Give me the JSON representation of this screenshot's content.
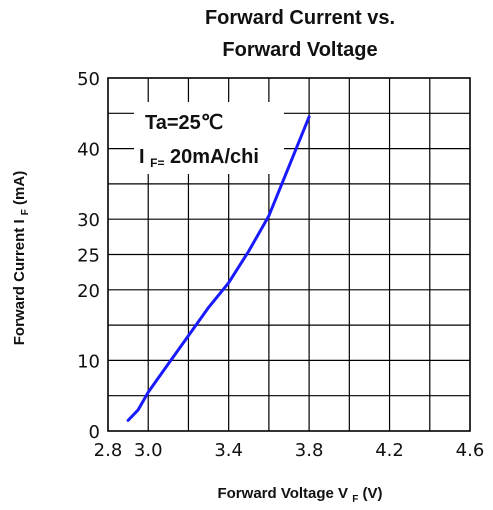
{
  "chart_data": {
    "type": "line",
    "title_line1": "Forward Current vs.",
    "title_line2": "Forward Voltage",
    "xlabel_main": "Forward Voltage V",
    "xlabel_sub": "F",
    "xlabel_unit": "(V)",
    "ylabel_main": "Forward Current I",
    "ylabel_sub": "F",
    "ylabel_unit": "(mA)",
    "annotation_line1": "Ta=25℃",
    "annotation_line2_main": "I",
    "annotation_line2_sub": "F=",
    "annotation_line2_rest": "20mA/chi",
    "xlim": [
      2.8,
      4.6
    ],
    "ylim": [
      0,
      50
    ],
    "x_ticks": [
      2.8,
      3.0,
      3.4,
      3.8,
      4.2,
      4.6
    ],
    "x_tick_labels": [
      "2.8",
      "3.0",
      "3.4",
      "3.8",
      "4.2",
      "4.6"
    ],
    "y_ticks": [
      0,
      10,
      20,
      25,
      30,
      40,
      50
    ],
    "y_tick_labels": [
      "0",
      "10",
      "20",
      "25",
      "30",
      "40",
      "50"
    ],
    "x_gridlines": [
      3.0,
      3.2,
      3.4,
      3.6,
      3.8,
      4.0,
      4.2,
      4.4
    ],
    "y_gridlines": [
      5,
      10,
      15,
      20,
      25,
      30,
      35,
      40,
      45
    ],
    "grid": true,
    "series": [
      {
        "color": "#1a1aff",
        "x": [
          2.9,
          2.95,
          3.0,
          3.1,
          3.2,
          3.3,
          3.4,
          3.5,
          3.6,
          3.7,
          3.8
        ],
        "y": [
          1.5,
          3,
          5.5,
          9.5,
          13.5,
          17.5,
          21,
          25.5,
          30.5,
          37.5,
          44.5
        ]
      }
    ]
  }
}
